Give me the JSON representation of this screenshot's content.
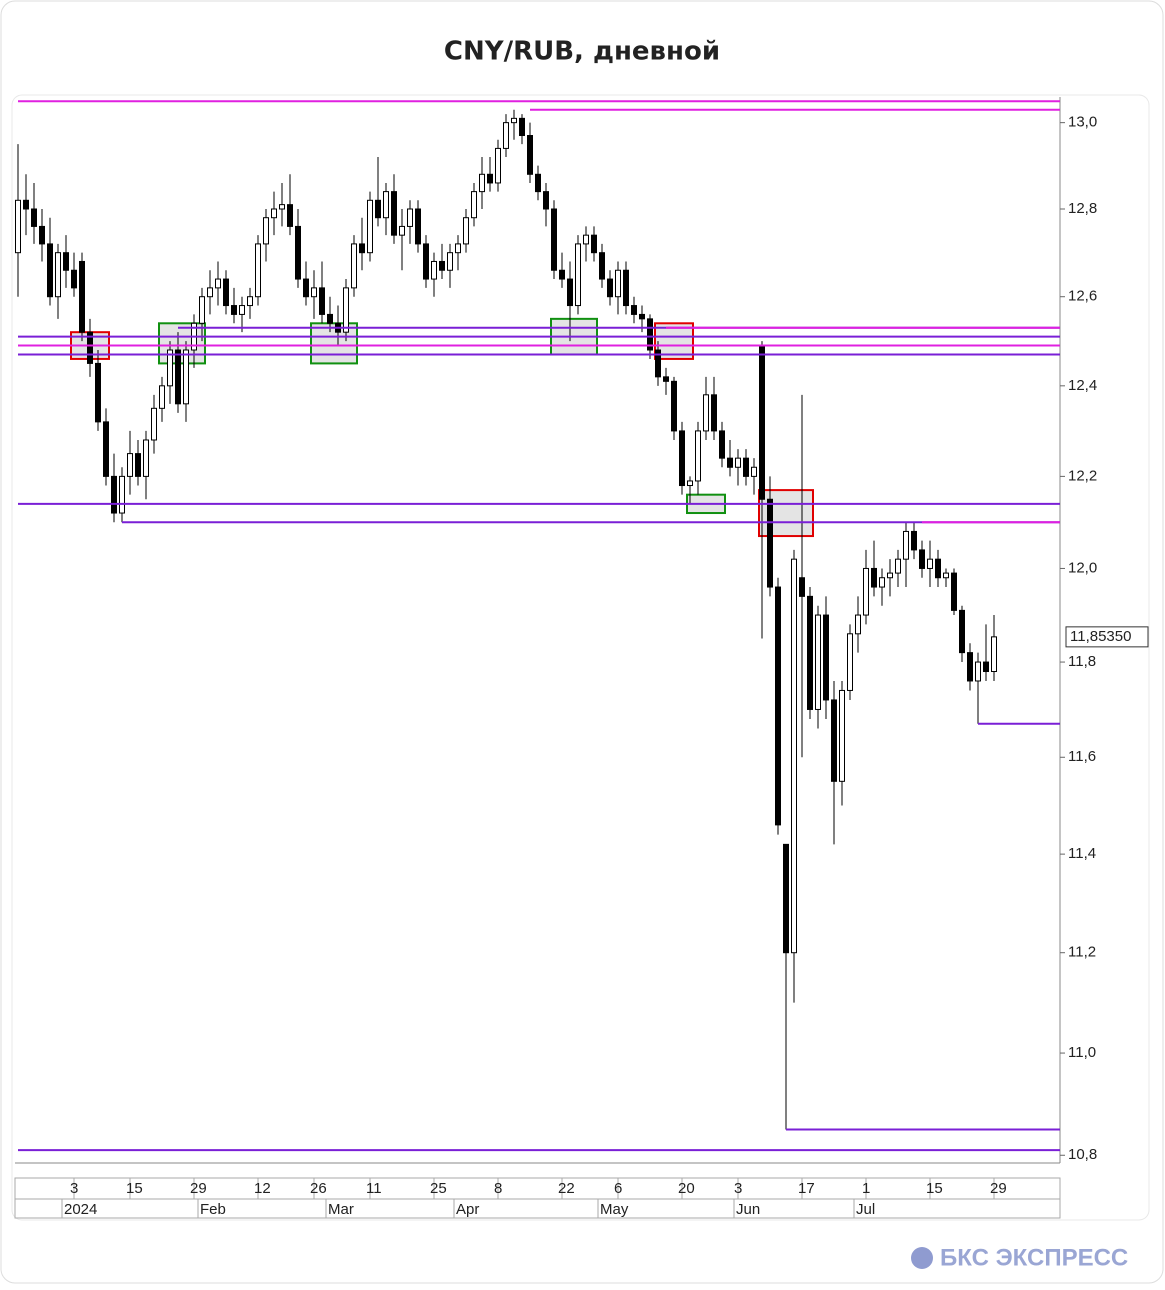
{
  "chart_data": {
    "type": "candlestick",
    "title": "CNY/RUB, дневной",
    "log_scale": true,
    "ylim": [
      10.785,
      13.06
    ],
    "yticks": [
      {
        "value": 13.0,
        "label": "13,0"
      },
      {
        "value": 12.8,
        "label": "12,8"
      },
      {
        "value": 12.6,
        "label": "12,6"
      },
      {
        "value": 12.4,
        "label": "12,4"
      },
      {
        "value": 12.2,
        "label": "12,2"
      },
      {
        "value": 12.0,
        "label": "12,0"
      },
      {
        "value": 11.8,
        "label": "11,8"
      },
      {
        "value": 11.6,
        "label": "11,6"
      },
      {
        "value": 11.4,
        "label": "11,4"
      },
      {
        "value": 11.2,
        "label": "11,2"
      },
      {
        "value": 11.0,
        "label": "11,0"
      },
      {
        "value": 10.8,
        "label": "10,8"
      }
    ],
    "xticks": [
      {
        "value": 7,
        "label": "3"
      },
      {
        "value": 14,
        "label": "15"
      },
      {
        "value": 22,
        "label": "29"
      },
      {
        "value": 30,
        "label": "12"
      },
      {
        "value": 37,
        "label": "26"
      },
      {
        "value": 44,
        "label": "11"
      },
      {
        "value": 52,
        "label": "25"
      },
      {
        "value": 60,
        "label": "8"
      },
      {
        "value": 68,
        "label": "22"
      },
      {
        "value": 75,
        "label": "6"
      },
      {
        "value": 83,
        "label": "20"
      },
      {
        "value": 90,
        "label": "3"
      },
      {
        "value": 98,
        "label": "17"
      },
      {
        "value": 106,
        "label": "1"
      },
      {
        "value": 114,
        "label": "15"
      },
      {
        "value": 122,
        "label": "29"
      }
    ],
    "period_ticks": [
      {
        "value": 6,
        "label": "2024"
      },
      {
        "value": 23,
        "label": "Feb"
      },
      {
        "value": 39,
        "label": "Mar"
      },
      {
        "value": 55,
        "label": "Apr"
      },
      {
        "value": 73,
        "label": "May"
      },
      {
        "value": 90,
        "label": "Jun"
      },
      {
        "value": 105,
        "label": "Jul"
      }
    ],
    "last_label": "11,85350",
    "ohlc": [
      [
        12.7,
        12.95,
        12.6,
        12.82
      ],
      [
        12.82,
        12.88,
        12.74,
        12.8
      ],
      [
        12.8,
        12.86,
        12.72,
        12.76
      ],
      [
        12.76,
        12.8,
        12.68,
        12.72
      ],
      [
        12.72,
        12.78,
        12.58,
        12.6
      ],
      [
        12.6,
        12.72,
        12.55,
        12.7
      ],
      [
        12.7,
        12.74,
        12.62,
        12.66
      ],
      [
        12.66,
        12.7,
        12.6,
        12.62
      ],
      [
        12.68,
        12.7,
        12.5,
        12.52
      ],
      [
        12.52,
        12.55,
        12.42,
        12.45
      ],
      [
        12.45,
        12.48,
        12.3,
        12.32
      ],
      [
        12.32,
        12.35,
        12.18,
        12.2
      ],
      [
        12.2,
        12.25,
        12.1,
        12.12
      ],
      [
        12.12,
        12.22,
        12.1,
        12.2
      ],
      [
        12.2,
        12.3,
        12.16,
        12.25
      ],
      [
        12.25,
        12.28,
        12.18,
        12.2
      ],
      [
        12.2,
        12.3,
        12.15,
        12.28
      ],
      [
        12.28,
        12.38,
        12.25,
        12.35
      ],
      [
        12.35,
        12.42,
        12.32,
        12.4
      ],
      [
        12.4,
        12.5,
        12.36,
        12.48
      ],
      [
        12.48,
        12.52,
        12.34,
        12.36
      ],
      [
        12.36,
        12.5,
        12.32,
        12.48
      ],
      [
        12.48,
        12.56,
        12.44,
        12.54
      ],
      [
        12.54,
        12.62,
        12.5,
        12.6
      ],
      [
        12.6,
        12.66,
        12.56,
        12.62
      ],
      [
        12.62,
        12.68,
        12.58,
        12.64
      ],
      [
        12.64,
        12.66,
        12.56,
        12.58
      ],
      [
        12.58,
        12.62,
        12.54,
        12.56
      ],
      [
        12.56,
        12.6,
        12.52,
        12.58
      ],
      [
        12.58,
        12.62,
        12.55,
        12.6
      ],
      [
        12.6,
        12.74,
        12.58,
        12.72
      ],
      [
        12.72,
        12.8,
        12.68,
        12.78
      ],
      [
        12.78,
        12.84,
        12.74,
        12.8
      ],
      [
        12.8,
        12.86,
        12.76,
        12.81
      ],
      [
        12.81,
        12.88,
        12.74,
        12.76
      ],
      [
        12.76,
        12.8,
        12.62,
        12.64
      ],
      [
        12.64,
        12.68,
        12.58,
        12.6
      ],
      [
        12.6,
        12.66,
        12.55,
        12.62
      ],
      [
        12.62,
        12.68,
        12.54,
        12.56
      ],
      [
        12.56,
        12.6,
        12.52,
        12.54
      ],
      [
        12.54,
        12.58,
        12.49,
        12.52
      ],
      [
        12.52,
        12.64,
        12.5,
        12.62
      ],
      [
        12.62,
        12.74,
        12.6,
        12.72
      ],
      [
        12.72,
        12.78,
        12.66,
        12.7
      ],
      [
        12.7,
        12.84,
        12.68,
        12.82
      ],
      [
        12.82,
        12.92,
        12.76,
        12.78
      ],
      [
        12.78,
        12.86,
        12.74,
        12.84
      ],
      [
        12.84,
        12.88,
        12.72,
        12.74
      ],
      [
        12.74,
        12.8,
        12.66,
        12.76
      ],
      [
        12.76,
        12.82,
        12.72,
        12.8
      ],
      [
        12.8,
        12.82,
        12.7,
        12.72
      ],
      [
        12.72,
        12.74,
        12.62,
        12.64
      ],
      [
        12.64,
        12.7,
        12.6,
        12.68
      ],
      [
        12.68,
        12.72,
        12.64,
        12.66
      ],
      [
        12.66,
        12.72,
        12.62,
        12.7
      ],
      [
        12.7,
        12.74,
        12.66,
        12.72
      ],
      [
        12.72,
        12.8,
        12.7,
        12.78
      ],
      [
        12.78,
        12.86,
        12.76,
        12.84
      ],
      [
        12.84,
        12.92,
        12.8,
        12.88
      ],
      [
        12.88,
        12.92,
        12.84,
        12.86
      ],
      [
        12.86,
        12.96,
        12.84,
        12.94
      ],
      [
        12.94,
        13.02,
        12.92,
        13.0
      ],
      [
        13.0,
        13.03,
        12.96,
        13.01
      ],
      [
        13.01,
        13.02,
        12.95,
        12.97
      ],
      [
        12.97,
        13.0,
        12.86,
        12.88
      ],
      [
        12.88,
        12.9,
        12.82,
        12.84
      ],
      [
        12.84,
        12.86,
        12.76,
        12.8
      ],
      [
        12.8,
        12.82,
        12.64,
        12.66
      ],
      [
        12.66,
        12.7,
        12.62,
        12.64
      ],
      [
        12.64,
        12.68,
        12.5,
        12.58
      ],
      [
        12.58,
        12.74,
        12.56,
        12.72
      ],
      [
        12.72,
        12.76,
        12.68,
        12.74
      ],
      [
        12.74,
        12.76,
        12.68,
        12.7
      ],
      [
        12.7,
        12.72,
        12.62,
        12.64
      ],
      [
        12.64,
        12.66,
        12.58,
        12.6
      ],
      [
        12.6,
        12.68,
        12.56,
        12.66
      ],
      [
        12.66,
        12.68,
        12.56,
        12.58
      ],
      [
        12.58,
        12.6,
        12.54,
        12.56
      ],
      [
        12.56,
        12.58,
        12.52,
        12.55
      ],
      [
        12.55,
        12.56,
        12.46,
        12.48
      ],
      [
        12.48,
        12.5,
        12.4,
        12.42
      ],
      [
        12.42,
        12.44,
        12.38,
        12.41
      ],
      [
        12.41,
        12.42,
        12.28,
        12.3
      ],
      [
        12.3,
        12.32,
        12.16,
        12.18
      ],
      [
        12.18,
        12.2,
        12.14,
        12.19
      ],
      [
        12.19,
        12.32,
        12.16,
        12.3
      ],
      [
        12.3,
        12.42,
        12.28,
        12.38
      ],
      [
        12.38,
        12.42,
        12.28,
        12.3
      ],
      [
        12.3,
        12.32,
        12.22,
        12.24
      ],
      [
        12.24,
        12.28,
        12.2,
        12.22
      ],
      [
        12.22,
        12.26,
        12.18,
        12.24
      ],
      [
        12.24,
        12.26,
        12.18,
        12.2
      ],
      [
        12.2,
        12.24,
        12.16,
        12.22
      ],
      [
        12.49,
        12.5,
        11.85,
        12.15
      ],
      [
        12.15,
        12.2,
        11.94,
        11.96
      ],
      [
        11.96,
        11.98,
        11.44,
        11.46
      ],
      [
        11.42,
        11.42,
        10.85,
        11.2
      ],
      [
        11.2,
        12.04,
        11.1,
        12.02
      ],
      [
        11.98,
        12.38,
        11.6,
        11.94
      ],
      [
        11.94,
        11.96,
        11.68,
        11.7
      ],
      [
        11.7,
        11.92,
        11.66,
        11.9
      ],
      [
        11.9,
        11.94,
        11.68,
        11.72
      ],
      [
        11.72,
        11.76,
        11.42,
        11.55
      ],
      [
        11.55,
        11.76,
        11.5,
        11.74
      ],
      [
        11.74,
        11.88,
        11.72,
        11.86
      ],
      [
        11.86,
        11.94,
        11.82,
        11.9
      ],
      [
        11.9,
        12.04,
        11.88,
        12.0
      ],
      [
        12.0,
        12.06,
        11.94,
        11.96
      ],
      [
        11.96,
        12.0,
        11.92,
        11.98
      ],
      [
        11.98,
        12.02,
        11.94,
        11.99
      ],
      [
        11.99,
        12.04,
        11.96,
        12.02
      ],
      [
        12.02,
        12.1,
        11.96,
        12.08
      ],
      [
        12.08,
        12.1,
        12.02,
        12.04
      ],
      [
        12.04,
        12.06,
        11.98,
        12.0
      ],
      [
        12.0,
        12.06,
        11.96,
        12.02
      ],
      [
        12.02,
        12.04,
        11.96,
        11.98
      ],
      [
        11.98,
        12.0,
        11.96,
        11.99
      ],
      [
        11.99,
        12.0,
        11.9,
        11.91
      ],
      [
        11.91,
        11.92,
        11.8,
        11.82
      ],
      [
        11.82,
        11.84,
        11.74,
        11.76
      ],
      [
        11.76,
        11.82,
        11.67,
        11.8
      ],
      [
        11.8,
        11.88,
        11.76,
        11.78
      ],
      [
        11.78,
        11.9,
        11.76,
        11.8535
      ]
    ],
    "levels": [
      {
        "value": 13.05,
        "color": "#e020e0",
        "start": 0
      },
      {
        "value": 13.03,
        "color": "#e020e0",
        "start": 64
      },
      {
        "value": 12.53,
        "color": "#7a1fd6",
        "start": 20
      },
      {
        "value": 12.53,
        "color": "#e020e0",
        "start": 81
      },
      {
        "value": 12.51,
        "color": "#7a1fd6",
        "start": 0
      },
      {
        "value": 12.49,
        "color": "#e020e0",
        "start": 0
      },
      {
        "value": 12.47,
        "color": "#7a1fd6",
        "start": 0
      },
      {
        "value": 12.14,
        "color": "#7a1fd6",
        "start": 0
      },
      {
        "value": 12.1,
        "color": "#7a1fd6",
        "start": 13
      },
      {
        "value": 12.1,
        "color": "#e020e0",
        "start": 113
      },
      {
        "value": 11.67,
        "color": "#7a1fd6",
        "start": 120
      },
      {
        "value": 10.85,
        "color": "#7a1fd6",
        "start": 96
      },
      {
        "value": 10.81,
        "color": "#7a1fd6",
        "start": 0
      }
    ],
    "boxes": [
      {
        "color": "#e00000",
        "range": [
          7,
          11
        ],
        "bounds": [
          12.46,
          12.52
        ]
      },
      {
        "color": "#109010",
        "range": [
          18,
          23
        ],
        "bounds": [
          12.45,
          12.54
        ]
      },
      {
        "color": "#109010",
        "range": [
          37,
          42
        ],
        "bounds": [
          12.45,
          12.54
        ]
      },
      {
        "color": "#109010",
        "range": [
          67,
          72
        ],
        "bounds": [
          12.47,
          12.55
        ]
      },
      {
        "color": "#e00000",
        "range": [
          80,
          84
        ],
        "bounds": [
          12.46,
          12.54
        ]
      },
      {
        "color": "#109010",
        "range": [
          84,
          88
        ],
        "bounds": [
          12.12,
          12.16
        ]
      },
      {
        "color": "#e00000",
        "range": [
          93,
          99
        ],
        "bounds": [
          12.07,
          12.17
        ]
      }
    ]
  },
  "footer": {
    "logo": "БКС ЭКСПРЕСС"
  }
}
